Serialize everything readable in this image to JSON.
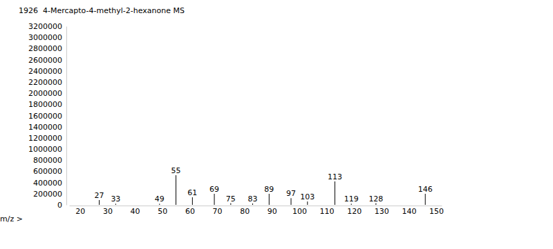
{
  "chart_data": {
    "type": "bar",
    "title": "4-Mercapto-4-methyl-2-hexanone MS",
    "annotations": [
      "1926"
    ],
    "x_label": "m/z  >",
    "x": [
      27,
      33,
      49,
      55,
      61,
      69,
      75,
      83,
      89,
      97,
      103,
      113,
      119,
      128,
      146
    ],
    "values": [
      86000,
      20000,
      20000,
      531000,
      136000,
      198000,
      30000,
      25000,
      198000,
      120000,
      60000,
      420000,
      20000,
      30000,
      198000
    ],
    "color": "#000000",
    "xlim": [
      16,
      152
    ],
    "xticks": [
      20,
      30,
      40,
      50,
      60,
      70,
      80,
      90,
      100,
      110,
      120,
      130,
      140,
      150
    ],
    "ylim": [
      0,
      3200000
    ],
    "yticks": [
      0,
      200000,
      400000,
      600000,
      800000,
      1000000,
      1200000,
      1400000,
      1600000,
      1800000,
      2000000,
      2200000,
      2400000,
      2600000,
      2800000,
      3000000,
      3200000
    ],
    "grid": false
  }
}
